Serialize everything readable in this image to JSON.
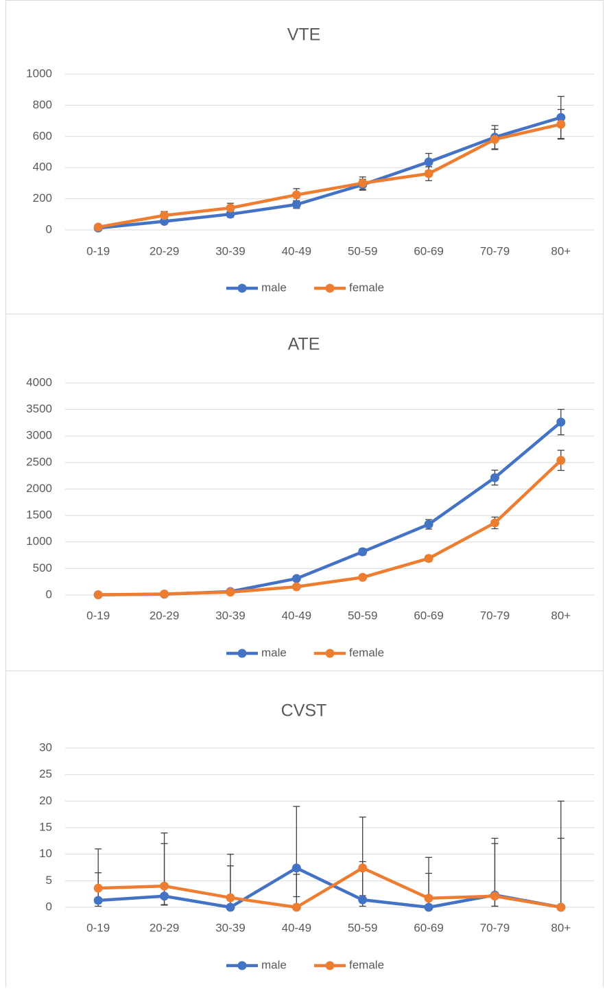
{
  "chart_data": [
    {
      "type": "line",
      "title": "VTE",
      "categories": [
        "0-19",
        "20-29",
        "30-39",
        "40-49",
        "50-59",
        "60-69",
        "70-79",
        "80+"
      ],
      "series": [
        {
          "name": "male",
          "color": "#4472c4",
          "values": [
            12,
            55,
            101,
            163,
            290,
            436,
            595,
            722
          ],
          "errors_minus": [
            5,
            15,
            20,
            25,
            35,
            55,
            75,
            135
          ],
          "errors_plus": [
            5,
            15,
            20,
            25,
            35,
            55,
            75,
            135
          ]
        },
        {
          "name": "female",
          "color": "#ed7d31",
          "values": [
            18,
            93,
            141,
            225,
            300,
            361,
            581,
            678
          ],
          "errors_minus": [
            8,
            25,
            30,
            40,
            40,
            45,
            65,
            95
          ],
          "errors_plus": [
            8,
            25,
            30,
            40,
            40,
            45,
            65,
            95
          ]
        }
      ],
      "ylim": [
        0,
        1000
      ],
      "yticks": [
        0,
        200,
        400,
        600,
        800,
        1000
      ],
      "grid": true,
      "legend": "bottom"
    },
    {
      "type": "line",
      "title": "ATE",
      "categories": [
        "0-19",
        "20-29",
        "30-39",
        "40-49",
        "50-59",
        "60-69",
        "70-79",
        "80+"
      ],
      "series": [
        {
          "name": "male",
          "color": "#4472c4",
          "values": [
            5,
            15,
            65,
            310,
            815,
            1333,
            2214,
            3262
          ],
          "errors_minus": [
            3,
            8,
            15,
            40,
            60,
            90,
            140,
            240
          ],
          "errors_plus": [
            3,
            8,
            15,
            40,
            60,
            90,
            140,
            240
          ]
        },
        {
          "name": "female",
          "color": "#ed7d31",
          "values": [
            5,
            20,
            55,
            155,
            333,
            690,
            1360,
            2540
          ],
          "errors_minus": [
            3,
            8,
            15,
            25,
            35,
            55,
            110,
            190
          ],
          "errors_plus": [
            3,
            8,
            15,
            25,
            35,
            55,
            110,
            190
          ]
        }
      ],
      "ylim": [
        0,
        4000
      ],
      "yticks": [
        0,
        500,
        1000,
        1500,
        2000,
        2500,
        3000,
        3500,
        4000
      ],
      "grid": true,
      "legend": "bottom"
    },
    {
      "type": "line",
      "title": "CVST",
      "categories": [
        "0-19",
        "20-29",
        "30-39",
        "40-49",
        "50-59",
        "60-69",
        "70-79",
        "80+"
      ],
      "series": [
        {
          "name": "male",
          "color": "#4472c4",
          "values": [
            1.3,
            2.1,
            0,
            7.4,
            1.4,
            0,
            2.3,
            0
          ],
          "errors_minus": [
            1.1,
            1.6,
            0,
            5.4,
            1.2,
            0,
            2.1,
            0
          ],
          "errors_plus": [
            5.2,
            9.9,
            7.8,
            11.6,
            7.2,
            6.4,
            9.7,
            13
          ]
        },
        {
          "name": "female",
          "color": "#ed7d31",
          "values": [
            3.6,
            4.0,
            1.8,
            0,
            7.4,
            1.7,
            2.1,
            0
          ],
          "errors_minus": [
            2.8,
            3.6,
            1.8,
            0,
            5.2,
            1.7,
            1.9,
            0
          ],
          "errors_plus": [
            7.4,
            10,
            8.2,
            6.2,
            9.6,
            7.7,
            10.9,
            20
          ]
        }
      ],
      "ylim": [
        0,
        30
      ],
      "yticks": [
        0,
        5,
        10,
        15,
        20,
        25,
        30
      ],
      "grid": true,
      "legend": "bottom"
    }
  ]
}
